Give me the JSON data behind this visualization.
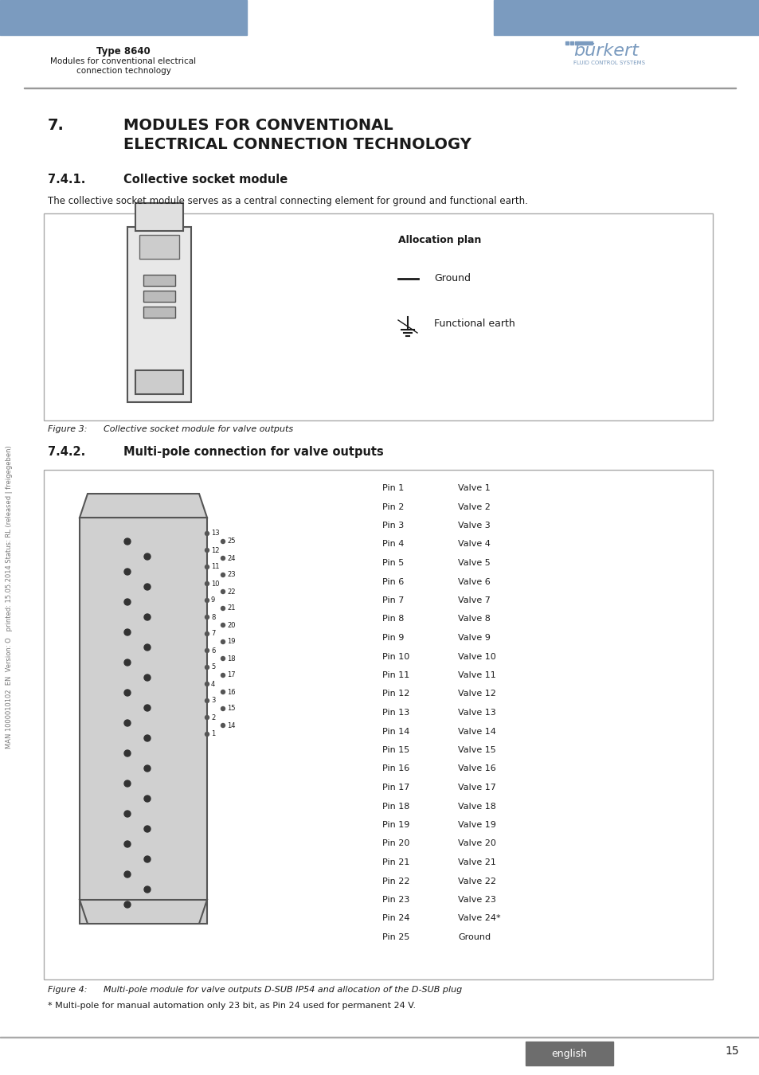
{
  "page_bg": "#ffffff",
  "header_bar_color": "#7b9bbf",
  "header_bar_height": 0.033,
  "header_type_text": "Type 8640",
  "header_sub_text": "Modules for conventional electrical\nconnection technology",
  "burkert_color": "#7b9bbf",
  "section_title": "7.      MODULES FOR CONVENTIONAL\n         ELECTRICAL CONNECTION TECHNOLOGY",
  "section_741_title": "7.4.1.    Collective socket module",
  "section_741_body": "The collective socket module serves as a central connecting element for ground and functional earth.",
  "alloc_plan_title": "Allocation plan",
  "alloc_ground_text": "Ground",
  "alloc_earth_text": "Functional earth",
  "figure3_label": "Figure 3:",
  "figure3_caption": "Collective socket module for valve outputs",
  "section_742_title": "7.4.2.    Multi-pole connection for valve outputs",
  "pin_labels": [
    "Pin 1",
    "Pin 2",
    "Pin 3",
    "Pin 4",
    "Pin 5",
    "Pin 6",
    "Pin 7",
    "Pin 8",
    "Pin 9",
    "Pin 10",
    "Pin 11",
    "Pin 12",
    "Pin 13",
    "Pin 14",
    "Pin 15",
    "Pin 16",
    "Pin 17",
    "Pin 18",
    "Pin 19",
    "Pin 20",
    "Pin 21",
    "Pin 22",
    "Pin 23",
    "Pin 24",
    "Pin 25"
  ],
  "valve_labels": [
    "Valve 1",
    "Valve 2",
    "Valve 3",
    "Valve 4",
    "Valve 5",
    "Valve 6",
    "Valve 7",
    "Valve 8",
    "Valve 9",
    "Valve 10",
    "Valve 11",
    "Valve 12",
    "Valve 13",
    "Valve 14",
    "Valve 15",
    "Valve 16",
    "Valve 17",
    "Valve 18",
    "Valve 19",
    "Valve 20",
    "Valve 21",
    "Valve 22",
    "Valve 23",
    "Valve 24*",
    "Ground"
  ],
  "figure4_label": "Figure 4:",
  "figure4_caption": "Multi-pole module for valve outputs D-SUB IP54 and allocation of the D-SUB plug",
  "footnote": "* Multi-pole for manual automation only 23 bit, as Pin 24 used for permanent 24 V.",
  "page_number": "15",
  "footer_english_bg": "#6d6d6d",
  "footer_english_text": "english",
  "sidebar_text": "MAN 1000010102  EN  Version: O   printed: 15.05.2014 Status: RL (released | freigegeben)",
  "box_border_color": "#cccccc",
  "text_color": "#1a1a1a",
  "figure_text_color": "#555555"
}
